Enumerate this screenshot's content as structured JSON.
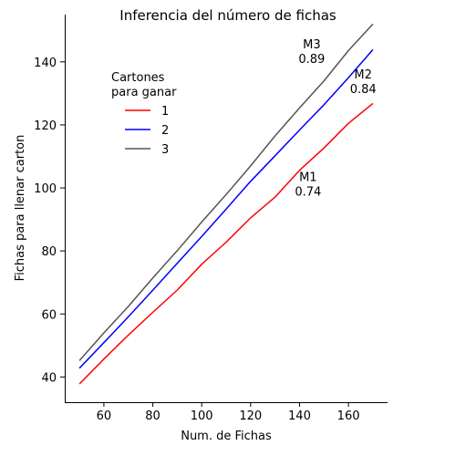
{
  "chart_data": {
    "type": "line",
    "title": "Inferencia del número de fichas",
    "xlabel": "Num. de Fichas",
    "ylabel": "Fichas para llenar carton",
    "xlim": [
      44,
      176
    ],
    "ylim": [
      32,
      155
    ],
    "xticks": [
      60,
      80,
      100,
      120,
      140,
      160
    ],
    "yticks": [
      40,
      60,
      80,
      100,
      120,
      140
    ],
    "grid": false,
    "legend": {
      "title_lines": [
        "Cartones",
        "para ganar"
      ],
      "placement": "upper-left"
    },
    "x": [
      50,
      60,
      70,
      80,
      90,
      100,
      110,
      120,
      130,
      140,
      150,
      160,
      170
    ],
    "series": [
      {
        "name": "1",
        "color": "#ff0000",
        "values": [
          37.8,
          45.7,
          53.3,
          60.5,
          67.6,
          75.8,
          82.8,
          90.5,
          97.1,
          105.6,
          112.7,
          120.5,
          126.8
        ]
      },
      {
        "name": "2",
        "color": "#0000ff",
        "values": [
          42.8,
          50.9,
          59.1,
          67.5,
          76.1,
          84.6,
          93.3,
          102.1,
          110.2,
          118.4,
          126.4,
          135.0,
          143.9
        ]
      },
      {
        "name": "3",
        "color": "#555555",
        "values": [
          45.2,
          54.0,
          62.4,
          71.4,
          80.1,
          89.2,
          97.9,
          107.0,
          116.5,
          125.4,
          134.0,
          143.6,
          152.0
        ]
      }
    ],
    "annotations": [
      {
        "id": "m3",
        "line1": "M3",
        "line2": "0.89",
        "x": 145,
        "y": 142
      },
      {
        "id": "m2",
        "line1": "M2",
        "line2": "0.84",
        "x": 166,
        "y": 132.4
      },
      {
        "id": "m1",
        "line1": "M1",
        "line2": "0.74",
        "x": 143.5,
        "y": 99.8
      }
    ]
  }
}
